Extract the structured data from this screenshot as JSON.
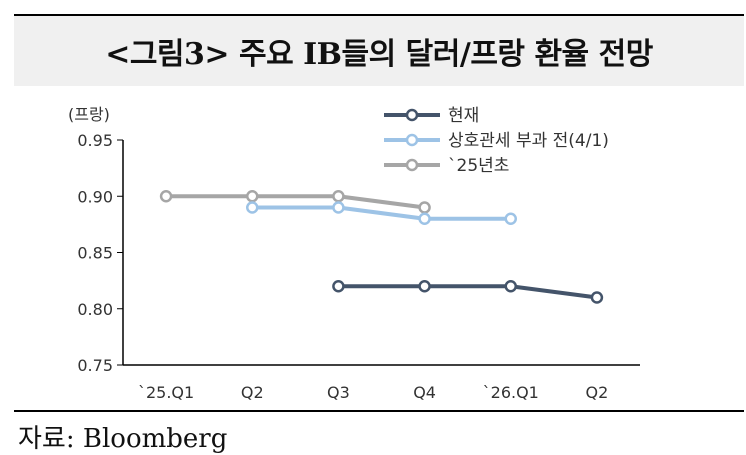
{
  "header": {
    "title": "<그림3> 주요 IB들의 달러/프랑 환율 전망"
  },
  "source": "자료: Bloomberg",
  "chart_data": {
    "type": "line",
    "title": "<그림3> 주요 IB들의 달러/프랑 환율 전망",
    "ylabel": "(프랑)",
    "xlabel": "",
    "categories": [
      "`25.Q1",
      "Q2",
      "Q3",
      "Q4",
      "`26.Q1",
      "Q2"
    ],
    "ylim": [
      0.75,
      0.95
    ],
    "yticks": [
      "0.95",
      "0.90",
      "0.85",
      "0.80",
      "0.75"
    ],
    "ytick_values": [
      0.95,
      0.9,
      0.85,
      0.8,
      0.75
    ],
    "grid": false,
    "legend_position": "top-right",
    "series": [
      {
        "name": "현재",
        "color": "#44546a",
        "values": [
          null,
          null,
          0.82,
          0.82,
          0.82,
          0.81
        ]
      },
      {
        "name": "상호관세 부과 전(4/1)",
        "color": "#9dc3e6",
        "values": [
          null,
          0.89,
          0.89,
          0.88,
          0.88,
          null
        ]
      },
      {
        "name": "`25년초",
        "color": "#a6a6a6",
        "values": [
          0.9,
          0.9,
          0.9,
          0.89,
          null,
          null
        ]
      }
    ]
  }
}
